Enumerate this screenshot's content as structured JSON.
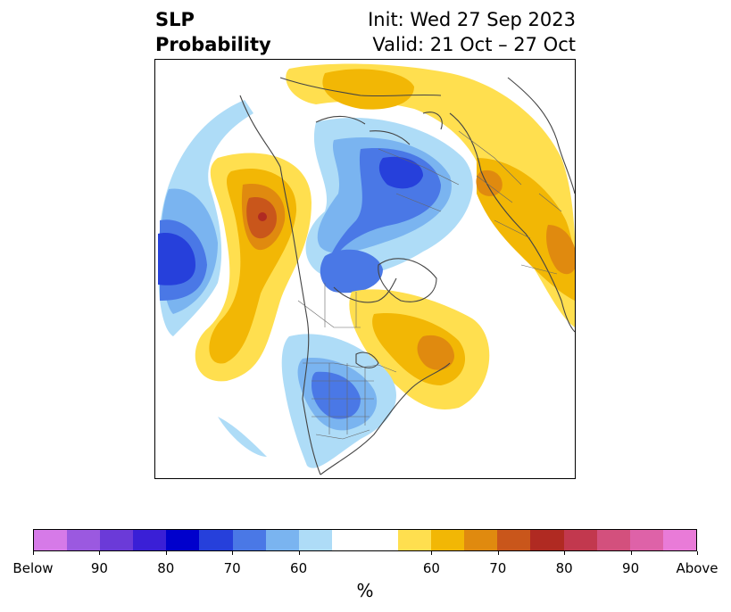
{
  "header": {
    "title_line1": "SLP",
    "title_line2": "Probability",
    "init_text": "Init: Wed 27 Sep 2023",
    "valid_text": "Valid: 21 Oct – 27 Oct"
  },
  "colorbar": {
    "colors": [
      "#d67ae8",
      "#9b59e0",
      "#6b3ad8",
      "#3a1fd6",
      "#0000cc",
      "#2640db",
      "#4a78e6",
      "#7ab4f0",
      "#aedcf7",
      "#ffffff",
      "#ffffff",
      "#ffdf4f",
      "#f2b705",
      "#e08a0f",
      "#c9561b",
      "#b02a22",
      "#c2384e",
      "#d3507d",
      "#de62a8",
      "#e97bd8"
    ],
    "tick_labels": [
      "Below",
      "90",
      "80",
      "70",
      "60",
      "60",
      "70",
      "80",
      "90",
      "Above"
    ],
    "units": "%"
  },
  "map": {
    "shading_colors": {
      "light_blue": "#aedcf7",
      "mid_blue": "#7ab4f0",
      "blue": "#4a78e6",
      "deep_blue": "#2640db",
      "yellow": "#ffdf4f",
      "gold": "#f2b705",
      "orange": "#e08a0f",
      "dark_orange": "#c9561b",
      "red": "#b02a22"
    }
  }
}
